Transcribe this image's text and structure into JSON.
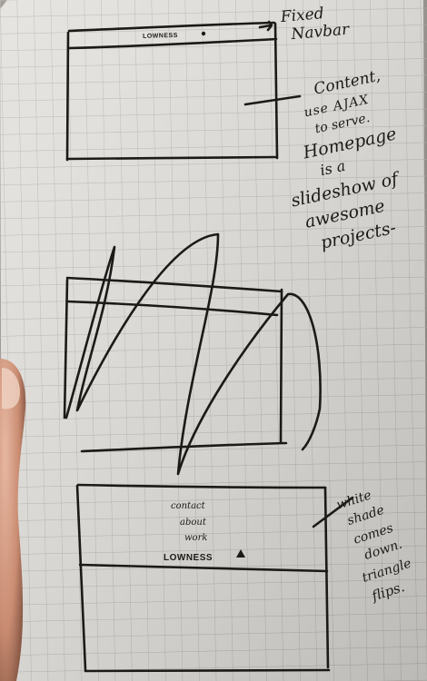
{
  "sketch1": {
    "navbar_brand": "LOWNESS",
    "annotation_navbar": [
      "Fixed",
      "Navbar"
    ],
    "annotation_content": [
      "Content,",
      "use AJAX",
      "to serve.",
      "Homepage",
      "is a",
      "slideshow of",
      "awesome",
      "projects-"
    ]
  },
  "sketch2": {},
  "sketch3": {
    "content_lines": [
      "contact",
      "about",
      "work"
    ],
    "brand": "LOWNESS",
    "annotation": [
      "white",
      "shade",
      "comes",
      "down.",
      "triangle",
      "flips."
    ]
  }
}
